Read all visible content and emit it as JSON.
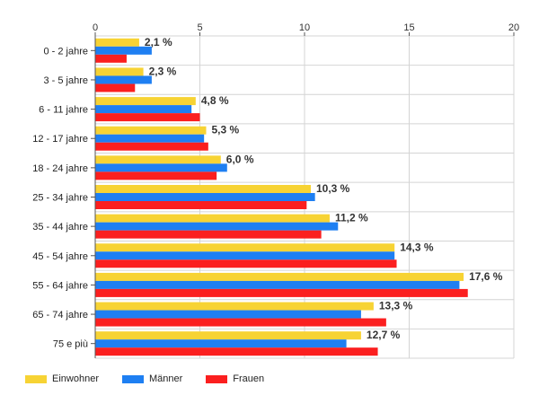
{
  "chart_data": {
    "type": "bar",
    "orientation": "horizontal",
    "categories": [
      "0 - 2 jahre",
      "3 - 5 jahre",
      "6 - 11 jahre",
      "12 - 17 jahre",
      "18 - 24 jahre",
      "25 - 34 jahre",
      "35 - 44 jahre",
      "45 - 54 jahre",
      "55 - 64 jahre",
      "65 - 74 jahre",
      "75 e più"
    ],
    "series": [
      {
        "name": "Einwohner",
        "color": "#f7d334",
        "values": [
          2.1,
          2.3,
          4.8,
          5.3,
          6.0,
          10.3,
          11.2,
          14.3,
          17.6,
          13.3,
          12.7
        ]
      },
      {
        "name": "Männer",
        "color": "#1e7ff2",
        "values": [
          2.7,
          2.7,
          4.6,
          5.2,
          6.3,
          10.5,
          11.6,
          14.3,
          17.4,
          12.7,
          12.0
        ]
      },
      {
        "name": "Frauen",
        "color": "#fb1f1f",
        "values": [
          1.5,
          1.9,
          5.0,
          5.4,
          5.8,
          10.1,
          10.8,
          14.4,
          17.8,
          13.9,
          13.5
        ]
      }
    ],
    "data_labels": [
      "2,1 %",
      "2,3 %",
      "4,8 %",
      "5,3 %",
      "6,0 %",
      "10,3 %",
      "11,2 %",
      "14,3 %",
      "17,6 %",
      "13,3 %",
      "12,7 %"
    ],
    "xlim": [
      0,
      20
    ],
    "xticks": [
      0,
      5,
      10,
      15,
      20
    ],
    "xtick_labels": [
      "0",
      "5",
      "10",
      "15",
      "20"
    ],
    "x_axis_position": "top",
    "grid": true,
    "legend_position": "bottom-left"
  }
}
